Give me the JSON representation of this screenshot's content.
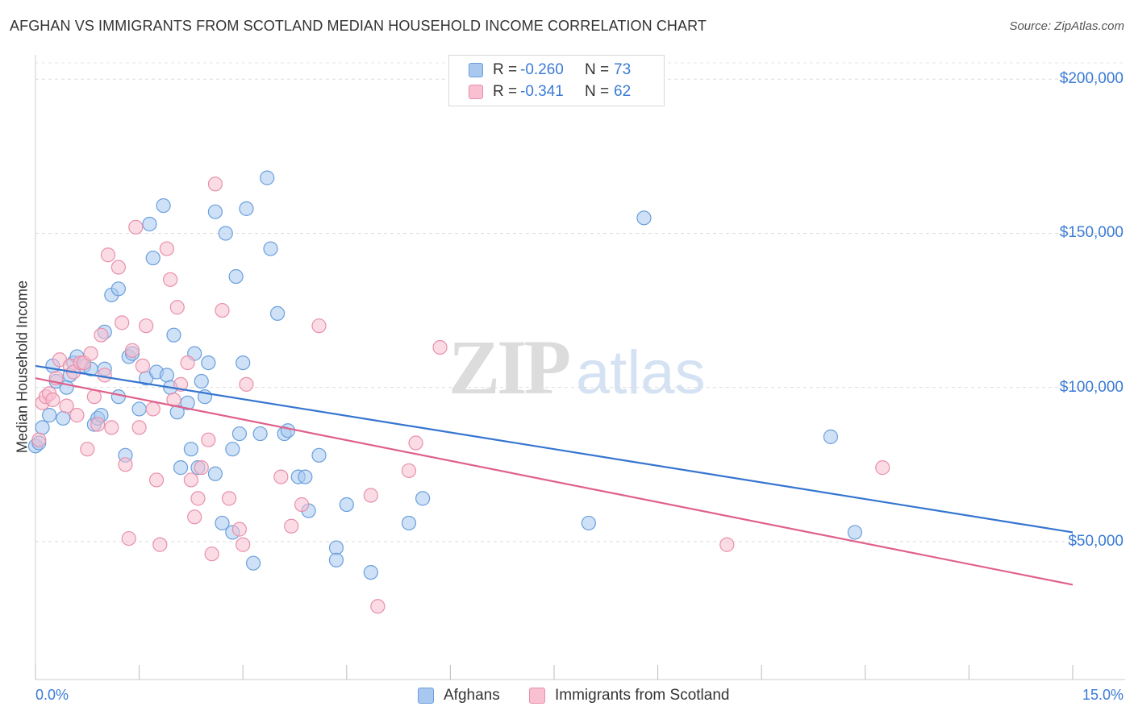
{
  "title": "AFGHAN VS IMMIGRANTS FROM SCOTLAND MEDIAN HOUSEHOLD INCOME CORRELATION CHART",
  "source": "Source: ZipAtlas.com",
  "watermark": {
    "zip": "ZIP",
    "atlas": "atlas"
  },
  "legend_top": {
    "rows": [
      {
        "r_label": "R =",
        "r_value": "-0.260",
        "n_label": "N =",
        "n_value": "73",
        "color": "#a8c8f0",
        "border": "#6a9fdc"
      },
      {
        "r_label": "R =",
        "r_value": "-0.341",
        "n_label": "N =",
        "n_value": "62",
        "color": "#f8c0d0",
        "border": "#e890ac"
      }
    ]
  },
  "legend_bottom": [
    {
      "label": "Afghans",
      "color": "#a8c8f0",
      "border": "#6a9fdc"
    },
    {
      "label": "Immigrants from Scotland",
      "color": "#f8c0d0",
      "border": "#e890ac"
    }
  ],
  "y_axis": {
    "title": "Median Household Income",
    "ticks": [
      "$50,000",
      "$100,000",
      "$150,000",
      "$200,000"
    ]
  },
  "x_axis": {
    "left_label": "0.0%",
    "right_label": "15.0%"
  },
  "chart_data": {
    "type": "scatter",
    "title": "AFGHAN VS IMMIGRANTS FROM SCOTLAND MEDIAN HOUSEHOLD INCOME CORRELATION CHART",
    "xlabel": "",
    "ylabel": "Median Household Income",
    "xlim": [
      0,
      15
    ],
    "ylim": [
      5000,
      210000
    ],
    "x_unit": "percent",
    "grid": true,
    "legend_placement": "top-center",
    "series": [
      {
        "name": "Afghans",
        "color": "#6a9fdc",
        "fill": "#a8c8f0",
        "trend": {
          "x": [
            0,
            15
          ],
          "y": [
            107000,
            53000
          ],
          "color": "#3575d0"
        },
        "points": [
          [
            0.0,
            81000
          ],
          [
            0.1,
            87000
          ],
          [
            0.2,
            91000
          ],
          [
            0.25,
            107000
          ],
          [
            0.3,
            102000
          ],
          [
            0.4,
            90000
          ],
          [
            0.45,
            100000
          ],
          [
            0.5,
            104000
          ],
          [
            0.55,
            108000
          ],
          [
            0.6,
            110000
          ],
          [
            0.7,
            107000
          ],
          [
            0.8,
            106000
          ],
          [
            0.85,
            88000
          ],
          [
            0.9,
            90000
          ],
          [
            0.95,
            91000
          ],
          [
            1.0,
            106000
          ],
          [
            1.0,
            118000
          ],
          [
            1.1,
            130000
          ],
          [
            1.2,
            132000
          ],
          [
            1.2,
            97000
          ],
          [
            1.3,
            78000
          ],
          [
            1.35,
            110000
          ],
          [
            1.4,
            111000
          ],
          [
            1.5,
            93000
          ],
          [
            1.6,
            103000
          ],
          [
            1.65,
            153000
          ],
          [
            1.7,
            142000
          ],
          [
            1.75,
            105000
          ],
          [
            1.85,
            159000
          ],
          [
            1.9,
            104000
          ],
          [
            1.95,
            100000
          ],
          [
            2.0,
            117000
          ],
          [
            2.05,
            92000
          ],
          [
            2.1,
            74000
          ],
          [
            2.2,
            95000
          ],
          [
            2.25,
            80000
          ],
          [
            2.3,
            111000
          ],
          [
            2.35,
            74000
          ],
          [
            2.4,
            102000
          ],
          [
            2.45,
            97000
          ],
          [
            2.5,
            108000
          ],
          [
            2.6,
            72000
          ],
          [
            2.6,
            157000
          ],
          [
            2.7,
            56000
          ],
          [
            2.75,
            150000
          ],
          [
            2.85,
            53000
          ],
          [
            2.85,
            80000
          ],
          [
            2.9,
            136000
          ],
          [
            2.95,
            85000
          ],
          [
            3.0,
            108000
          ],
          [
            3.05,
            158000
          ],
          [
            3.15,
            43000
          ],
          [
            3.25,
            85000
          ],
          [
            3.35,
            168000
          ],
          [
            3.4,
            145000
          ],
          [
            3.5,
            124000
          ],
          [
            3.6,
            85000
          ],
          [
            3.65,
            86000
          ],
          [
            3.8,
            71000
          ],
          [
            3.9,
            71000
          ],
          [
            3.95,
            60000
          ],
          [
            4.1,
            78000
          ],
          [
            4.35,
            48000
          ],
          [
            4.35,
            44000
          ],
          [
            4.5,
            62000
          ],
          [
            4.85,
            40000
          ],
          [
            5.4,
            56000
          ],
          [
            5.6,
            64000
          ],
          [
            8.0,
            56000
          ],
          [
            8.8,
            155000
          ],
          [
            11.5,
            84000
          ],
          [
            11.85,
            53000
          ],
          [
            0.05,
            82000
          ]
        ]
      },
      {
        "name": "Immigrants from Scotland",
        "color": "#e890ac",
        "fill": "#f8c0d0",
        "trend": {
          "x": [
            0,
            15
          ],
          "y": [
            103000,
            36000
          ],
          "color": "#e0608a"
        },
        "points": [
          [
            0.05,
            83000
          ],
          [
            0.1,
            95000
          ],
          [
            0.15,
            97000
          ],
          [
            0.2,
            98000
          ],
          [
            0.25,
            96000
          ],
          [
            0.3,
            103000
          ],
          [
            0.35,
            109000
          ],
          [
            0.45,
            94000
          ],
          [
            0.5,
            107000
          ],
          [
            0.55,
            105000
          ],
          [
            0.6,
            91000
          ],
          [
            0.65,
            108000
          ],
          [
            0.7,
            108000
          ],
          [
            0.75,
            80000
          ],
          [
            0.8,
            111000
          ],
          [
            0.85,
            97000
          ],
          [
            0.9,
            88000
          ],
          [
            0.95,
            117000
          ],
          [
            1.0,
            104000
          ],
          [
            1.05,
            143000
          ],
          [
            1.1,
            87000
          ],
          [
            1.2,
            139000
          ],
          [
            1.25,
            121000
          ],
          [
            1.3,
            75000
          ],
          [
            1.35,
            51000
          ],
          [
            1.4,
            112000
          ],
          [
            1.45,
            152000
          ],
          [
            1.5,
            87000
          ],
          [
            1.55,
            107000
          ],
          [
            1.6,
            120000
          ],
          [
            1.7,
            93000
          ],
          [
            1.75,
            70000
          ],
          [
            1.8,
            49000
          ],
          [
            1.9,
            145000
          ],
          [
            1.95,
            135000
          ],
          [
            2.0,
            96000
          ],
          [
            2.05,
            126000
          ],
          [
            2.1,
            101000
          ],
          [
            2.2,
            108000
          ],
          [
            2.25,
            70000
          ],
          [
            2.3,
            58000
          ],
          [
            2.35,
            64000
          ],
          [
            2.4,
            74000
          ],
          [
            2.5,
            83000
          ],
          [
            2.55,
            46000
          ],
          [
            2.6,
            166000
          ],
          [
            2.7,
            125000
          ],
          [
            2.8,
            64000
          ],
          [
            2.95,
            54000
          ],
          [
            3.0,
            49000
          ],
          [
            3.05,
            101000
          ],
          [
            3.55,
            71000
          ],
          [
            3.7,
            55000
          ],
          [
            3.85,
            62000
          ],
          [
            4.1,
            120000
          ],
          [
            4.85,
            65000
          ],
          [
            4.95,
            29000
          ],
          [
            5.4,
            73000
          ],
          [
            5.5,
            82000
          ],
          [
            5.85,
            113000
          ],
          [
            10.0,
            49000
          ],
          [
            12.25,
            74000
          ]
        ]
      }
    ]
  }
}
